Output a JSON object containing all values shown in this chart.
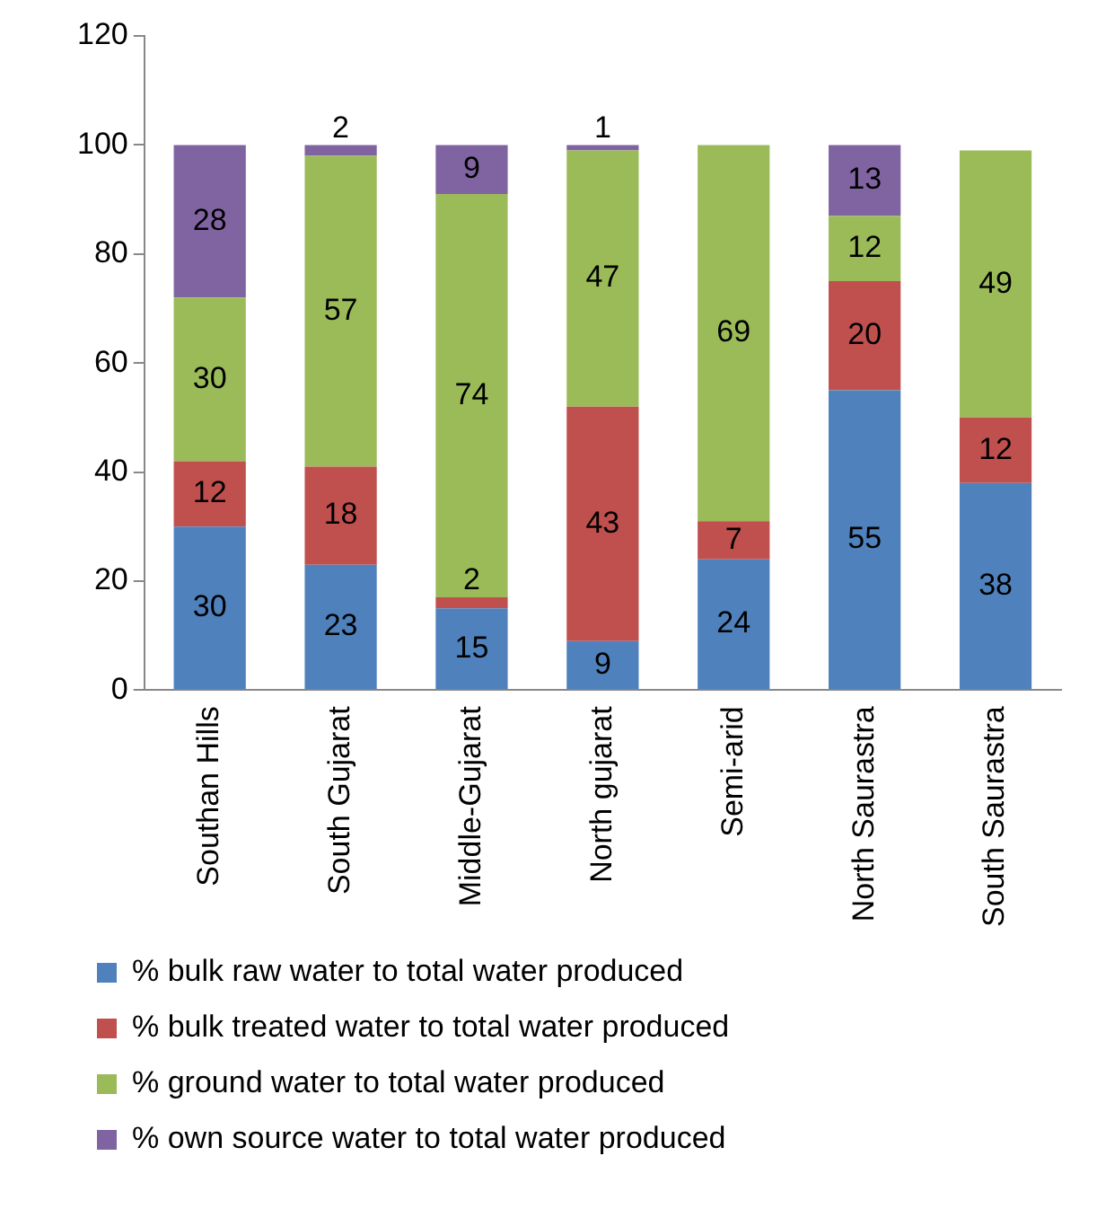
{
  "chart_data": {
    "type": "bar",
    "stacked": true,
    "categories": [
      "Southan Hills",
      "South Gujarat",
      "Middle-Gujarat",
      "North gujarat",
      "Semi-arid",
      "North Saurastra",
      "South Saurastra"
    ],
    "series": [
      {
        "name": "% bulk raw water to total water produced",
        "color": "#4f81bd",
        "values": [
          30,
          23,
          15,
          9,
          24,
          55,
          38
        ]
      },
      {
        "name": "% bulk treated water to total water produced",
        "color": "#c0504d",
        "values": [
          12,
          18,
          2,
          43,
          7,
          20,
          12
        ]
      },
      {
        "name": "% ground water to total water produced",
        "color": "#9bbb59",
        "values": [
          30,
          57,
          74,
          47,
          69,
          12,
          49
        ]
      },
      {
        "name": "% own source water to total water produced",
        "color": "#8064a2",
        "values": [
          28,
          2,
          9,
          1,
          null,
          13,
          null
        ]
      }
    ],
    "ylim": [
      0,
      120
    ],
    "yticks": [
      0,
      20,
      40,
      60,
      80,
      100,
      120
    ],
    "grid": false,
    "legend": "bottom",
    "data_labels": true
  }
}
